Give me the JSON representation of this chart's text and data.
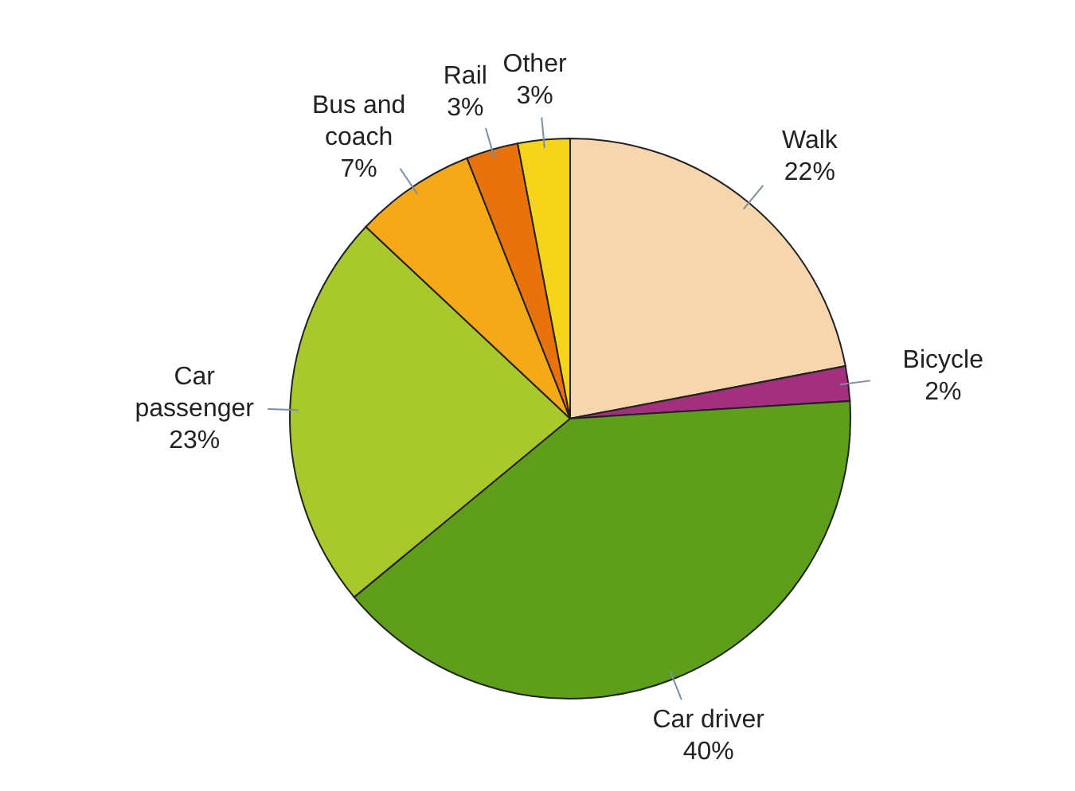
{
  "chart_data": {
    "type": "pie",
    "categories": [
      "Walk",
      "Bicycle",
      "Car driver",
      "Car passenger",
      "Bus and coach",
      "Rail",
      "Other"
    ],
    "values": [
      22,
      2,
      40,
      23,
      7,
      3,
      3
    ],
    "value_labels": [
      "22%",
      "2%",
      "40%",
      "23%",
      "7%",
      "3%",
      "3%"
    ],
    "colors": [
      "#f7d6ad",
      "#a3307f",
      "#5f9e1b",
      "#a9c82b",
      "#f5a919",
      "#e8730d",
      "#f6d41a"
    ],
    "legend": false
  }
}
